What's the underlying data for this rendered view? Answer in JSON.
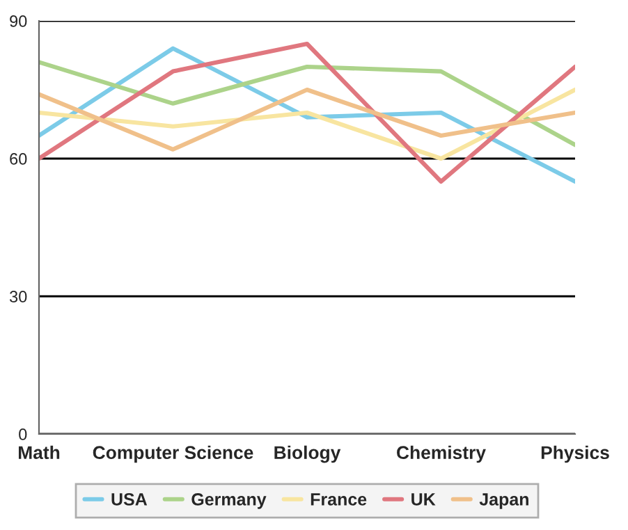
{
  "chart_data": {
    "type": "line",
    "categories": [
      "Math",
      "Computer Science",
      "Biology",
      "Chemistry",
      "Physics"
    ],
    "series": [
      {
        "name": "USA",
        "color": "#7ccbe8",
        "values": [
          65,
          84,
          69,
          70,
          55
        ]
      },
      {
        "name": "Germany",
        "color": "#acd38a",
        "values": [
          81,
          72,
          80,
          79,
          63
        ]
      },
      {
        "name": "France",
        "color": "#f8e5a0",
        "values": [
          70,
          67,
          70,
          60,
          75
        ]
      },
      {
        "name": "UK",
        "color": "#e0777f",
        "values": [
          60,
          79,
          85,
          55,
          80
        ]
      },
      {
        "name": "Japan",
        "color": "#f0c08a",
        "values": [
          74,
          62,
          75,
          65,
          70
        ]
      }
    ],
    "ylim": [
      0,
      90
    ],
    "yticks": [
      0,
      30,
      60,
      90
    ],
    "grid": "y",
    "legend": "bottom",
    "marker": "none",
    "line_style": "solid"
  }
}
